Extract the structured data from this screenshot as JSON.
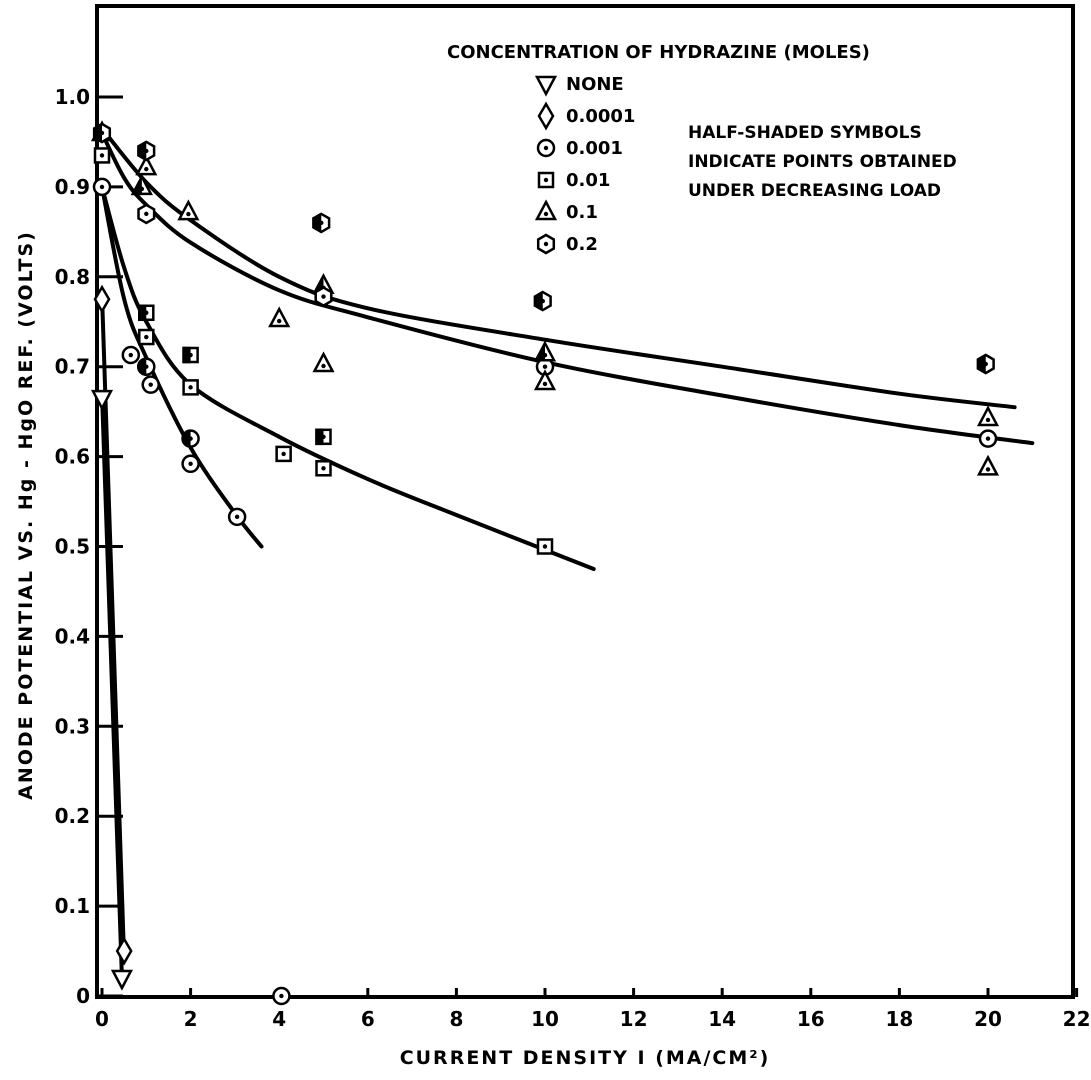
{
  "chart_data": {
    "type": "scatter",
    "title": "",
    "xlabel": "CURRENT DENSITY I (MA/CM²)",
    "ylabel": "ANODE POTENTIAL VS. Hg - HgO REF. (VOLTS)",
    "xlim": [
      0,
      22
    ],
    "ylim": [
      0,
      1.1
    ],
    "x_ticks": [
      "0",
      "2",
      "4",
      "6",
      "8",
      "10",
      "12",
      "14",
      "16",
      "18",
      "20",
      "22"
    ],
    "y_ticks": [
      "0",
      "0.1",
      "0.2",
      "0.3",
      "0.4",
      "0.5",
      "0.6",
      "0.7",
      "0.8",
      "0.9",
      "1.0"
    ],
    "grid": false,
    "legend_title": "CONCENTRATION OF HYDRAZINE (MOLES)",
    "legend_placement": "top-right",
    "annotation": [
      "HALF-SHADED SYMBOLS",
      "INDICATE POINTS OBTAINED",
      "UNDER DECREASING LOAD"
    ],
    "series": [
      {
        "name": "NONE",
        "symbol": "triangle-down",
        "points": [
          [
            0,
            0.665
          ],
          [
            0.45,
            0.02
          ]
        ],
        "curve": [
          [
            0,
            0.67
          ],
          [
            0.45,
            0.02
          ]
        ]
      },
      {
        "name": "0.0001",
        "symbol": "diamond",
        "points": [
          [
            0,
            0.775
          ],
          [
            0.5,
            0.05
          ]
        ],
        "curve": [
          [
            0,
            0.78
          ],
          [
            0.5,
            0.04
          ]
        ]
      },
      {
        "name": "0.001",
        "symbol": "circle-dot",
        "points": [
          [
            0,
            0.9
          ],
          [
            0.65,
            0.713
          ],
          [
            1,
            0.7
          ],
          [
            1.1,
            0.68
          ],
          [
            2,
            0.62
          ],
          [
            2,
            0.592
          ],
          [
            3.05,
            0.533
          ],
          [
            4.05,
            0.0
          ],
          [
            10,
            0.7
          ],
          [
            20,
            0.62
          ]
        ],
        "half_shaded": [
          false,
          false,
          true,
          false,
          true,
          false,
          false,
          false,
          false,
          false
        ],
        "curve": [
          [
            0,
            0.9
          ],
          [
            0.5,
            0.775
          ],
          [
            1,
            0.71
          ],
          [
            2,
            0.61
          ],
          [
            3,
            0.537
          ],
          [
            3.6,
            0.5
          ]
        ]
      },
      {
        "name": "0.01",
        "symbol": "square-dot",
        "points": [
          [
            0,
            0.935
          ],
          [
            1,
            0.76
          ],
          [
            1,
            0.733
          ],
          [
            2,
            0.713
          ],
          [
            2,
            0.677
          ],
          [
            4.1,
            0.603
          ],
          [
            5,
            0.622
          ],
          [
            5,
            0.587
          ],
          [
            10,
            0.5
          ]
        ],
        "half_shaded": [
          false,
          true,
          false,
          true,
          false,
          false,
          true,
          false,
          false
        ],
        "curve": [
          [
            0,
            0.9
          ],
          [
            0.5,
            0.81
          ],
          [
            1,
            0.75
          ],
          [
            2,
            0.68
          ],
          [
            4,
            0.622
          ],
          [
            6,
            0.575
          ],
          [
            8,
            0.535
          ],
          [
            11.1,
            0.475
          ]
        ]
      },
      {
        "name": "0.1",
        "symbol": "triangle-dot",
        "points": [
          [
            0,
            0.96
          ],
          [
            1,
            0.922
          ],
          [
            0.9,
            0.9
          ],
          [
            1.95,
            0.872
          ],
          [
            4,
            0.753
          ],
          [
            5,
            0.79
          ],
          [
            5,
            0.703
          ],
          [
            10,
            0.715
          ],
          [
            10,
            0.683
          ],
          [
            20,
            0.643
          ],
          [
            20,
            0.588
          ]
        ],
        "half_shaded": [
          false,
          false,
          true,
          false,
          false,
          true,
          false,
          true,
          false,
          false,
          false
        ],
        "curve": [
          [
            0,
            0.965
          ],
          [
            1,
            0.905
          ],
          [
            2,
            0.863
          ],
          [
            4,
            0.8
          ],
          [
            6,
            0.765
          ],
          [
            10,
            0.73
          ],
          [
            14,
            0.7
          ],
          [
            18,
            0.67
          ],
          [
            20.6,
            0.655
          ]
        ]
      },
      {
        "name": "0.2",
        "symbol": "hexagon-dot",
        "points": [
          [
            0,
            0.96
          ],
          [
            1,
            0.94
          ],
          [
            1,
            0.87
          ],
          [
            4.95,
            0.86
          ],
          [
            5,
            0.778
          ],
          [
            9.95,
            0.773
          ],
          [
            19.95,
            0.703
          ]
        ],
        "half_shaded": [
          true,
          true,
          false,
          true,
          false,
          true,
          true
        ],
        "curve": [
          [
            0,
            0.96
          ],
          [
            0.5,
            0.91
          ],
          [
            1,
            0.88
          ],
          [
            2,
            0.838
          ],
          [
            4,
            0.785
          ],
          [
            6,
            0.755
          ],
          [
            10,
            0.705
          ],
          [
            14,
            0.668
          ],
          [
            18,
            0.635
          ],
          [
            21,
            0.615
          ]
        ]
      }
    ]
  }
}
